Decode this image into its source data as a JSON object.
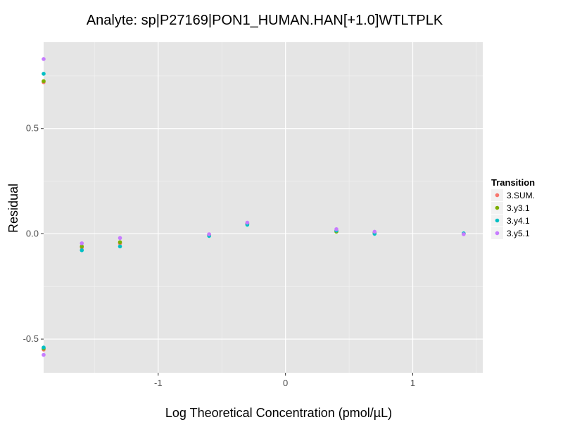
{
  "chart_data": {
    "type": "scatter",
    "title": "Analyte: sp|P27169|PON1_HUMAN.HAN[+1.0]WTLTPLK",
    "xlabel": "Log Theoretical Concentration (pmol/µL)",
    "ylabel": "Residual",
    "xlim": [
      -1.9,
      1.55
    ],
    "ylim": [
      -0.66,
      0.91
    ],
    "x_ticks": [
      -1,
      0,
      1
    ],
    "x_tick_labels": [
      "-1",
      "0",
      "1"
    ],
    "y_ticks": [
      -0.5,
      0.0,
      0.5
    ],
    "y_tick_labels": [
      "-0.5",
      "0.0",
      "0.5"
    ],
    "grid": true,
    "legend": {
      "title": "Transition",
      "position": "right"
    },
    "series": [
      {
        "name": "3.SUM.",
        "color": "#F8766D",
        "x": [
          -1.9,
          -1.9,
          -1.6,
          -1.3,
          -0.6,
          -0.3,
          0.4,
          0.7,
          1.4
        ],
        "y": [
          0.72,
          -0.55,
          -0.065,
          -0.045,
          -0.005,
          0.047,
          0.012,
          0.005,
          0.0
        ]
      },
      {
        "name": "3.y3.1",
        "color": "#7CAE00",
        "x": [
          -1.9,
          -1.9,
          -1.6,
          -1.3,
          -0.6,
          -0.3,
          0.4,
          0.7,
          1.4
        ],
        "y": [
          0.725,
          -0.545,
          -0.06,
          -0.04,
          -0.005,
          0.048,
          0.01,
          0.005,
          0.0
        ]
      },
      {
        "name": "3.y4.1",
        "color": "#00BFC4",
        "x": [
          -1.9,
          -1.9,
          -1.6,
          -1.3,
          -0.6,
          -0.3,
          0.4,
          0.7,
          1.4
        ],
        "y": [
          0.76,
          -0.54,
          -0.078,
          -0.06,
          -0.01,
          0.043,
          0.015,
          0.0,
          0.002
        ]
      },
      {
        "name": "3.y5.1",
        "color": "#C77CFF",
        "x": [
          -1.9,
          -1.9,
          -1.6,
          -1.3,
          -0.6,
          -0.3,
          0.4,
          0.7,
          1.4
        ],
        "y": [
          0.83,
          -0.575,
          -0.045,
          -0.02,
          -0.002,
          0.053,
          0.022,
          0.01,
          -0.002
        ]
      }
    ]
  },
  "colors": {
    "panel_background": "#E5E5E5",
    "grid_major": "#FFFFFF",
    "grid_minor": "#F2F2F2"
  }
}
